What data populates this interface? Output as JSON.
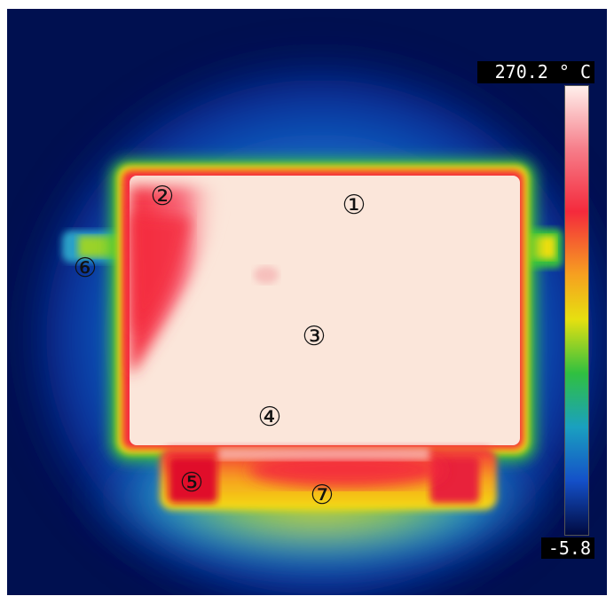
{
  "scale": {
    "max_label": "270.2 ° C",
    "min_label": "-5.8"
  },
  "colors": {
    "background_cold": "#001050",
    "hot": "#fbe6da",
    "red": "#f42a3c",
    "yellow": "#f3df10",
    "green": "#3ac43a",
    "blue": "#1670d8"
  },
  "markers": [
    {
      "label": "①"
    },
    {
      "label": "②"
    },
    {
      "label": "③"
    },
    {
      "label": "④"
    },
    {
      "label": "⑤"
    },
    {
      "label": "⑥"
    },
    {
      "label": "⑦"
    }
  ]
}
